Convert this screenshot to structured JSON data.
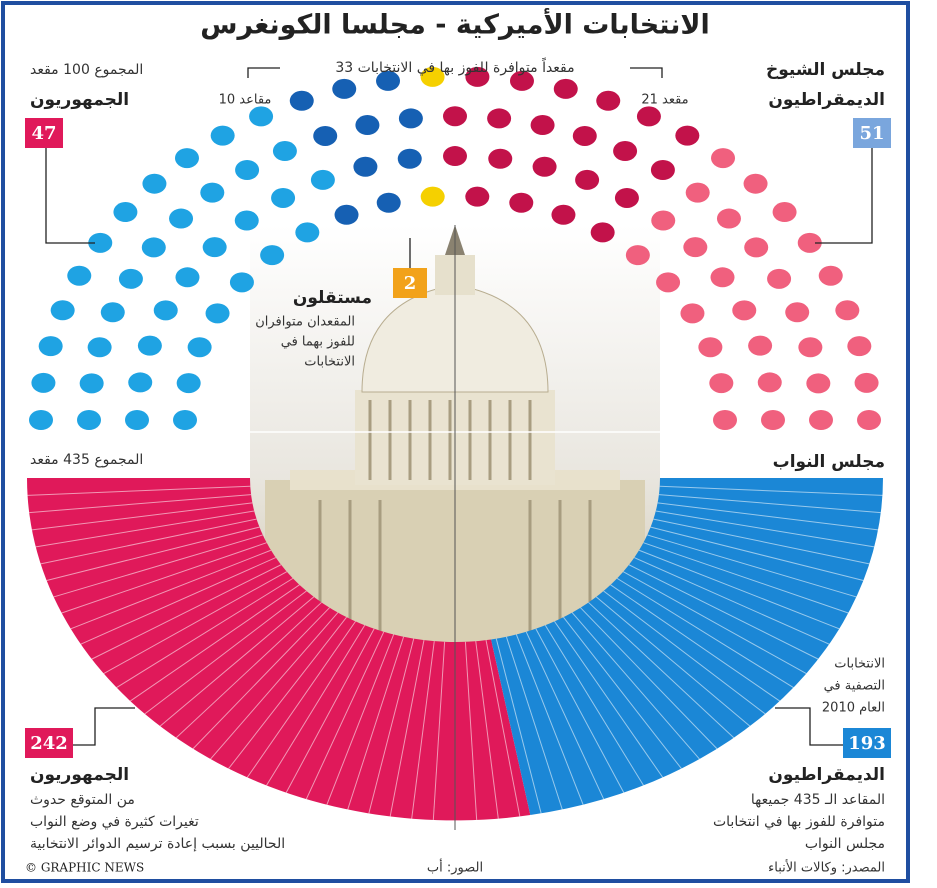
{
  "chart_data": {
    "type": "parliament",
    "title": "الانتخابات الأميركية - مجلسا الكونغرس",
    "senate": {
      "name": "مجلس الشيوخ",
      "total": "المجموع 100 مقعد",
      "up_label": "33 مقعداً متوافرة للفوز بها في الانتخابات",
      "parties": [
        {
          "name": "الجمهوريون",
          "seats": 47,
          "up": 10,
          "up_label": "10 مقاعد",
          "color": "#1fa3e3",
          "up_color": "#1660b3",
          "box_color": "#e0195a"
        },
        {
          "name": "مستقلون",
          "seats": 2,
          "up": 2,
          "note": [
            "المقعدان متوافران",
            "للفوز بهما في",
            "الانتخابات"
          ],
          "color": "#f5d000",
          "box_color": "#f2a21a"
        },
        {
          "name": "الديمقراطيون",
          "seats": 51,
          "up": 21,
          "up_label": "21 مقعد",
          "color": "#f0607e",
          "up_color": "#c2124a",
          "box_color": "#7aa6dd"
        }
      ]
    },
    "house": {
      "name": "مجلس النواب",
      "total": "المجموع 435 مقعد",
      "election_note": [
        "الانتخابات",
        "التصفية في",
        "العام 2010"
      ],
      "parties": [
        {
          "name": "الجمهوريون",
          "seats": 242,
          "note": [
            "من المتوقع حدوث",
            "تغيرات كثيرة في وضع النواب",
            "الحاليين بسبب إعادة ترسيم الدوائر الانتخابية"
          ],
          "color": "#e0195a"
        },
        {
          "name": "الديمقراطيون",
          "seats": 193,
          "note": [
            "المقاعد الـ 435 جميعها",
            "متوافرة للفوز بها في انتخابات",
            "مجلس النواب"
          ],
          "color": "#1b87d6"
        }
      ]
    },
    "footer": {
      "credit": "© GRAPHIC NEWS",
      "photo": "الصور: أب",
      "source": "المصدر: وكالات الأنباء"
    }
  }
}
